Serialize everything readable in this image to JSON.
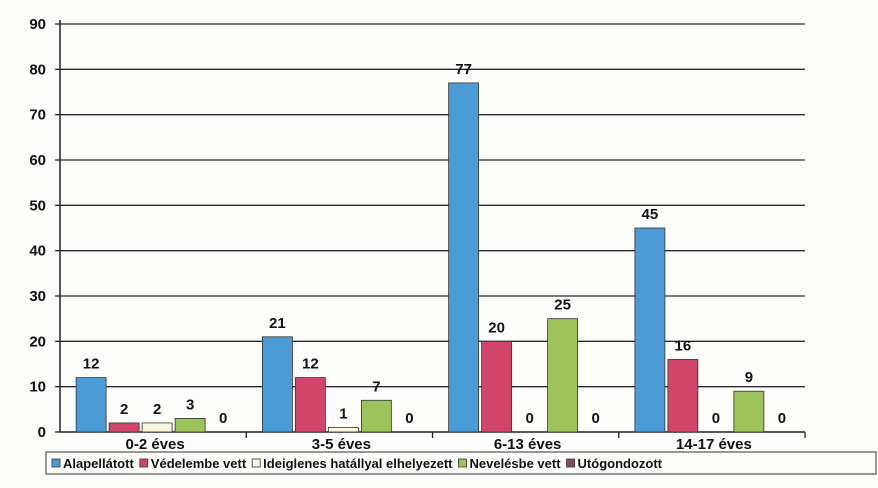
{
  "chart_data": {
    "type": "bar",
    "title": "",
    "xlabel": "",
    "ylabel": "",
    "ylim": [
      0,
      90
    ],
    "yticks": [
      0,
      10,
      20,
      30,
      40,
      50,
      60,
      70,
      80,
      90
    ],
    "grid": true,
    "legend_position": "bottom",
    "categories": [
      "0-2 éves",
      "3-5 éves",
      "6-13 éves",
      "14-17 éves"
    ],
    "series": [
      {
        "name": "Alapellátott",
        "color": "#4b9cd6",
        "values": [
          12,
          21,
          77,
          45
        ]
      },
      {
        "name": "Védelembe vett",
        "color": "#d2456b",
        "values": [
          2,
          12,
          20,
          16
        ]
      },
      {
        "name": "Ideiglenes hatállyal elhelyezett",
        "color": "#fbf6de",
        "values": [
          2,
          1,
          0,
          0
        ]
      },
      {
        "name": "Nevelésbe vett",
        "color": "#9cc45a",
        "values": [
          3,
          7,
          25,
          9
        ]
      },
      {
        "name": "Utógondozott",
        "color": "#8a4664",
        "values": [
          0,
          0,
          0,
          0
        ]
      }
    ]
  }
}
